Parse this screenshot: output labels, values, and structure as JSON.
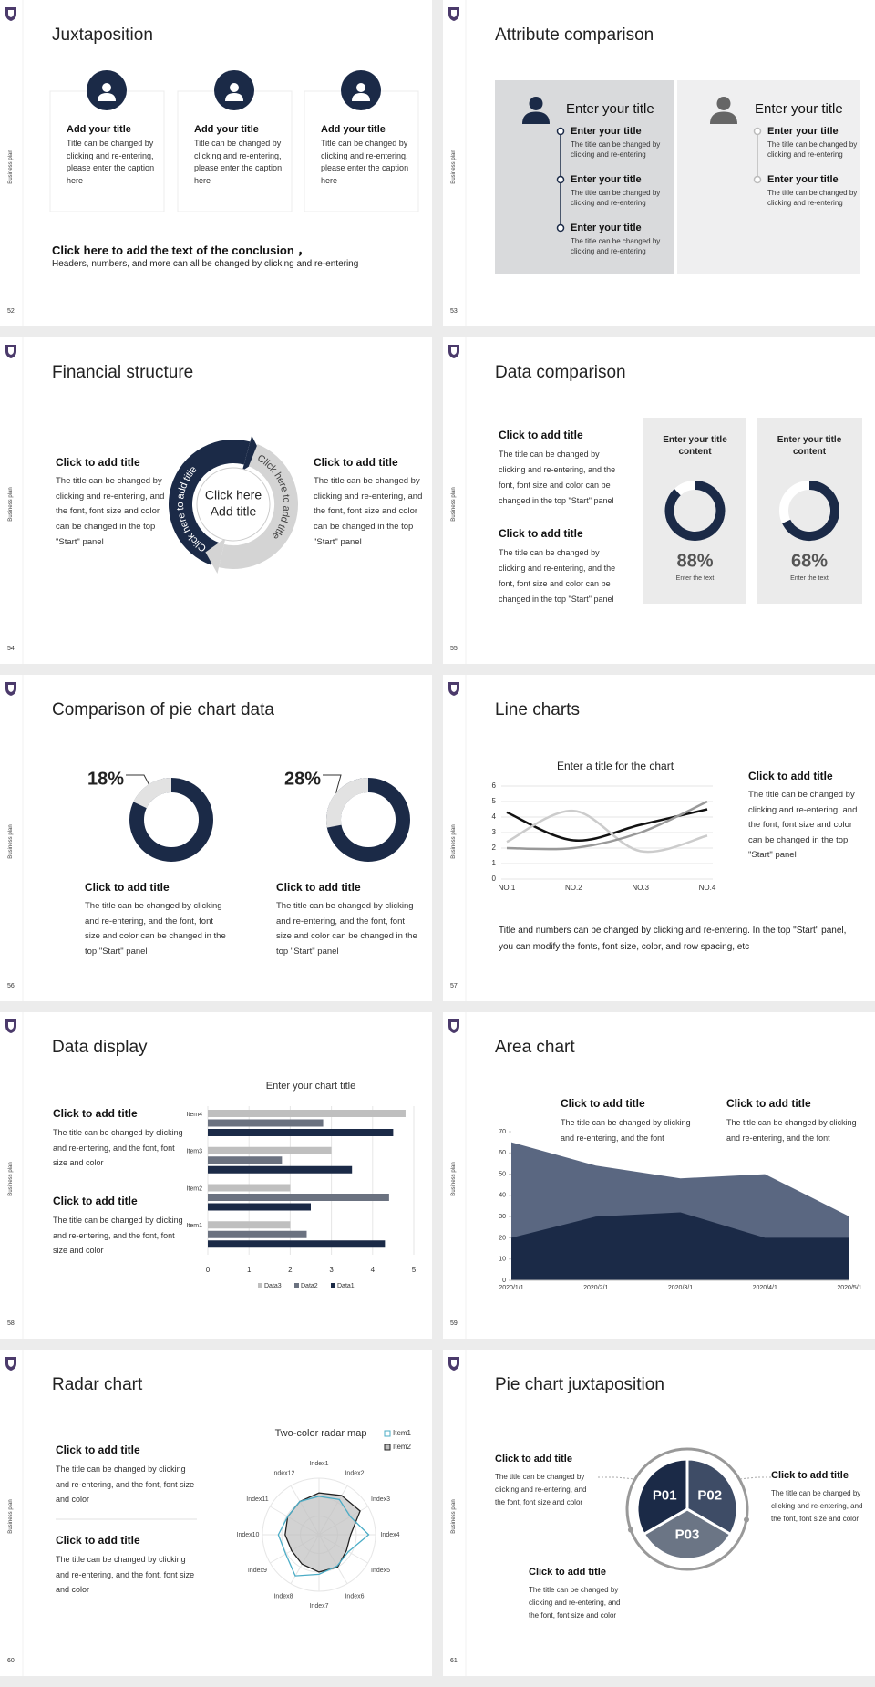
{
  "side_label": "Business plan",
  "slides": [
    {
      "number": "52",
      "title": "Juxtaposition",
      "cards": [
        {
          "title": "Add your title",
          "text": "Title can be changed by clicking and re-entering, please enter the caption here"
        },
        {
          "title": "Add your title",
          "text": "Title can be changed by clicking and re-entering, please enter the caption here"
        },
        {
          "title": "Add your title",
          "text": "Title can be changed by clicking and re-entering, please enter the caption here"
        }
      ],
      "conclusion": {
        "title": "Click here to add the text of the conclusion ，",
        "text": "Headers, numbers, and more can all be changed by clicking and re-entering"
      }
    },
    {
      "number": "53",
      "title": "Attribute comparison",
      "panels": [
        {
          "title": "Enter your title",
          "items": [
            {
              "title": "Enter your title",
              "text": "The title can be changed by clicking and re-entering"
            },
            {
              "title": "Enter your title",
              "text": "The title can be changed by clicking and re-entering"
            },
            {
              "title": "Enter your title",
              "text": "The title can be changed by clicking and re-entering"
            }
          ]
        },
        {
          "title": "Enter your title",
          "items": [
            {
              "title": "Enter your title",
              "text": "The title can be changed by clicking and re-entering"
            },
            {
              "title": "Enter your title",
              "text": "The title can be changed by clicking and re-entering"
            }
          ]
        }
      ]
    },
    {
      "number": "54",
      "title": "Financial structure",
      "blocks": [
        {
          "title": "Click to add title",
          "text": "The title can be changed by clicking and re-entering, and the font, font size and color can be changed in the top \"Start\" panel"
        },
        {
          "title": "Click to add title",
          "text": "The title can be changed by clicking and re-entering, and the font, font size and color can be changed in the top \"Start\" panel"
        }
      ],
      "center": [
        "Click here",
        "Add title"
      ],
      "arrows": [
        "Click here to add title",
        "Click here to add title"
      ]
    },
    {
      "number": "55",
      "title": "Data comparison",
      "blocks": [
        {
          "title": "Click to add title",
          "text": "The title can be changed by clicking and re-entering, and the font, font size and color can be changed in the top \"Start\" panel"
        },
        {
          "title": "Click to add title",
          "text": "The title can be changed by clicking and re-entering, and the font, font size and color can be changed in the top \"Start\" panel"
        }
      ]
    },
    {
      "number": "56",
      "title": "Comparison of pie chart data",
      "blocks": [
        {
          "title": "Click to add title",
          "text": "The title can be changed by clicking and re-entering, and the font, font size and color can be changed in the top \"Start\" panel"
        },
        {
          "title": "Click to add title",
          "text": "The title can be changed by clicking and re-entering, and the font, font size and color can be changed in the top \"Start\" panel"
        }
      ]
    },
    {
      "number": "57",
      "title": "Line charts",
      "blocks": [
        {
          "title": "Click to add title",
          "text": "The title can be changed by clicking and re-entering, and the font, font size and color can be changed in the top \"Start\" panel"
        }
      ],
      "note": "Title and numbers can be changed by clicking and re-entering. In the top \"Start\" panel, you can modify the fonts, font size, color, and row spacing, etc"
    },
    {
      "number": "58",
      "title": "Data display",
      "blocks": [
        {
          "title": "Click to add title",
          "text": "The title can be changed by clicking and re-entering, and the font, font size and color"
        },
        {
          "title": "Click to add title",
          "text": "The title can be changed by clicking and re-entering, and the font, font size and color"
        }
      ]
    },
    {
      "number": "59",
      "title": "Area chart",
      "blocks": [
        {
          "title": "Click to add title",
          "text": "The title can be changed by clicking and re-entering, and the font"
        },
        {
          "title": "Click to add title",
          "text": "The title can be changed by clicking and re-entering, and the font"
        }
      ]
    },
    {
      "number": "60",
      "title": "Radar chart",
      "blocks": [
        {
          "title": "Click to add title",
          "text": "The title can be changed by clicking and re-entering, and the font, font size and color"
        },
        {
          "title": "Click to add title",
          "text": "The title can be changed by clicking and re-entering, and the font, font size and color"
        }
      ]
    },
    {
      "number": "61",
      "title": "Pie chart juxtaposition",
      "blocks": [
        {
          "title": "Click to add title",
          "text": "The title can be changed by clicking and re-entering, and the font, font size and color"
        },
        {
          "title": "Click to add title",
          "text": "The title can be changed by clicking and re-entering, and the font, font size and color"
        },
        {
          "title": "Click to add title",
          "text": "The title can be changed by clicking and re-entering, and the font, font size and color"
        }
      ],
      "segments": [
        "P01",
        "P02",
        "P03"
      ]
    }
  ],
  "chart_data": [
    {
      "type": "donut",
      "title": "Enter your title content",
      "values": [
        88
      ],
      "value_labels": [
        "88%"
      ],
      "caption": "Enter the text",
      "color": "#1b2a47",
      "track_color": "#ffffff",
      "direction": "clockwise"
    },
    {
      "type": "donut",
      "title": "Enter your title content",
      "values": [
        68
      ],
      "value_labels": [
        "68%"
      ],
      "caption": "Enter the text",
      "color": "#1b2a47",
      "track_color": "#ffffff",
      "direction": "clockwise"
    },
    {
      "type": "donut",
      "values": [
        18
      ],
      "value_labels": [
        "18%"
      ],
      "color": "#e2e2e2",
      "track_color": "#1b2a47",
      "direction": "counterclockwise"
    },
    {
      "type": "donut",
      "values": [
        28
      ],
      "value_labels": [
        "28%"
      ],
      "color": "#e2e2e2",
      "track_color": "#1b2a47",
      "direction": "counterclockwise"
    },
    {
      "type": "line",
      "title": "Enter a title for the chart",
      "categories": [
        "NO.1",
        "NO.2",
        "NO.3",
        "NO.4"
      ],
      "series": [
        {
          "color": "#111111",
          "values": [
            4.3,
            2.5,
            3.5,
            4.5
          ]
        },
        {
          "color": "#cccccc",
          "values": [
            2.4,
            4.4,
            1.8,
            2.8
          ]
        },
        {
          "color": "#999999",
          "values": [
            2,
            2,
            3,
            5
          ]
        }
      ],
      "ylim": [
        0,
        6
      ],
      "yticks": [
        0,
        1,
        2,
        3,
        4,
        5,
        6
      ],
      "grid": true
    },
    {
      "type": "bar",
      "orientation": "horizontal",
      "title": "Enter your chart title",
      "categories": [
        "Item1",
        "Item2",
        "Item3",
        "Item4"
      ],
      "series": [
        {
          "name": "Data3",
          "color": "#bfbfbf",
          "values": [
            2,
            2,
            3,
            4.8
          ]
        },
        {
          "name": "Data2",
          "color": "#6b7280",
          "values": [
            2.4,
            4.4,
            1.8,
            2.8
          ]
        },
        {
          "name": "Data1",
          "color": "#1b2a47",
          "values": [
            4.3,
            2.5,
            3.5,
            4.5
          ]
        }
      ],
      "xlim": [
        0,
        5
      ],
      "xticks": [
        0,
        1,
        2,
        3,
        4,
        5
      ],
      "grid": true,
      "legend": "bottom"
    },
    {
      "type": "area",
      "categories": [
        "2020/1/1",
        "2020/2/1",
        "2020/3/1",
        "2020/4/1",
        "2020/5/1"
      ],
      "series": [
        {
          "color": "#5a6781",
          "values": [
            65,
            54,
            48,
            50,
            30
          ]
        },
        {
          "color": "#1b2a47",
          "values": [
            20,
            30,
            32,
            20,
            20
          ]
        }
      ],
      "ylim": [
        0,
        70
      ],
      "yticks": [
        0,
        10,
        20,
        30,
        40,
        50,
        60,
        70
      ]
    },
    {
      "type": "radar",
      "title": "Two-color radar map",
      "categories": [
        "Index1",
        "Index2",
        "Index3",
        "Index4",
        "Index5",
        "Index6",
        "Index7",
        "Index8",
        "Index9",
        "Index10",
        "Index11",
        "Index12"
      ],
      "series": [
        {
          "name": "Item1",
          "color": "#4bacc6",
          "values": [
            3.4,
            3.6,
            3.2,
            4.4,
            3.0,
            3.2,
            3.5,
            4.2,
            3.4,
            3.6,
            3.2,
            3.4
          ]
        },
        {
          "name": "Item2",
          "color": "#222222",
          "fill": "#bfbfbf",
          "values": [
            3.7,
            4.0,
            4.2,
            2.8,
            2.8,
            3.3,
            3.3,
            3.0,
            2.8,
            3.0,
            3.2,
            3.4
          ]
        }
      ],
      "rlim": [
        0,
        5
      ],
      "legend": "top-right"
    }
  ]
}
